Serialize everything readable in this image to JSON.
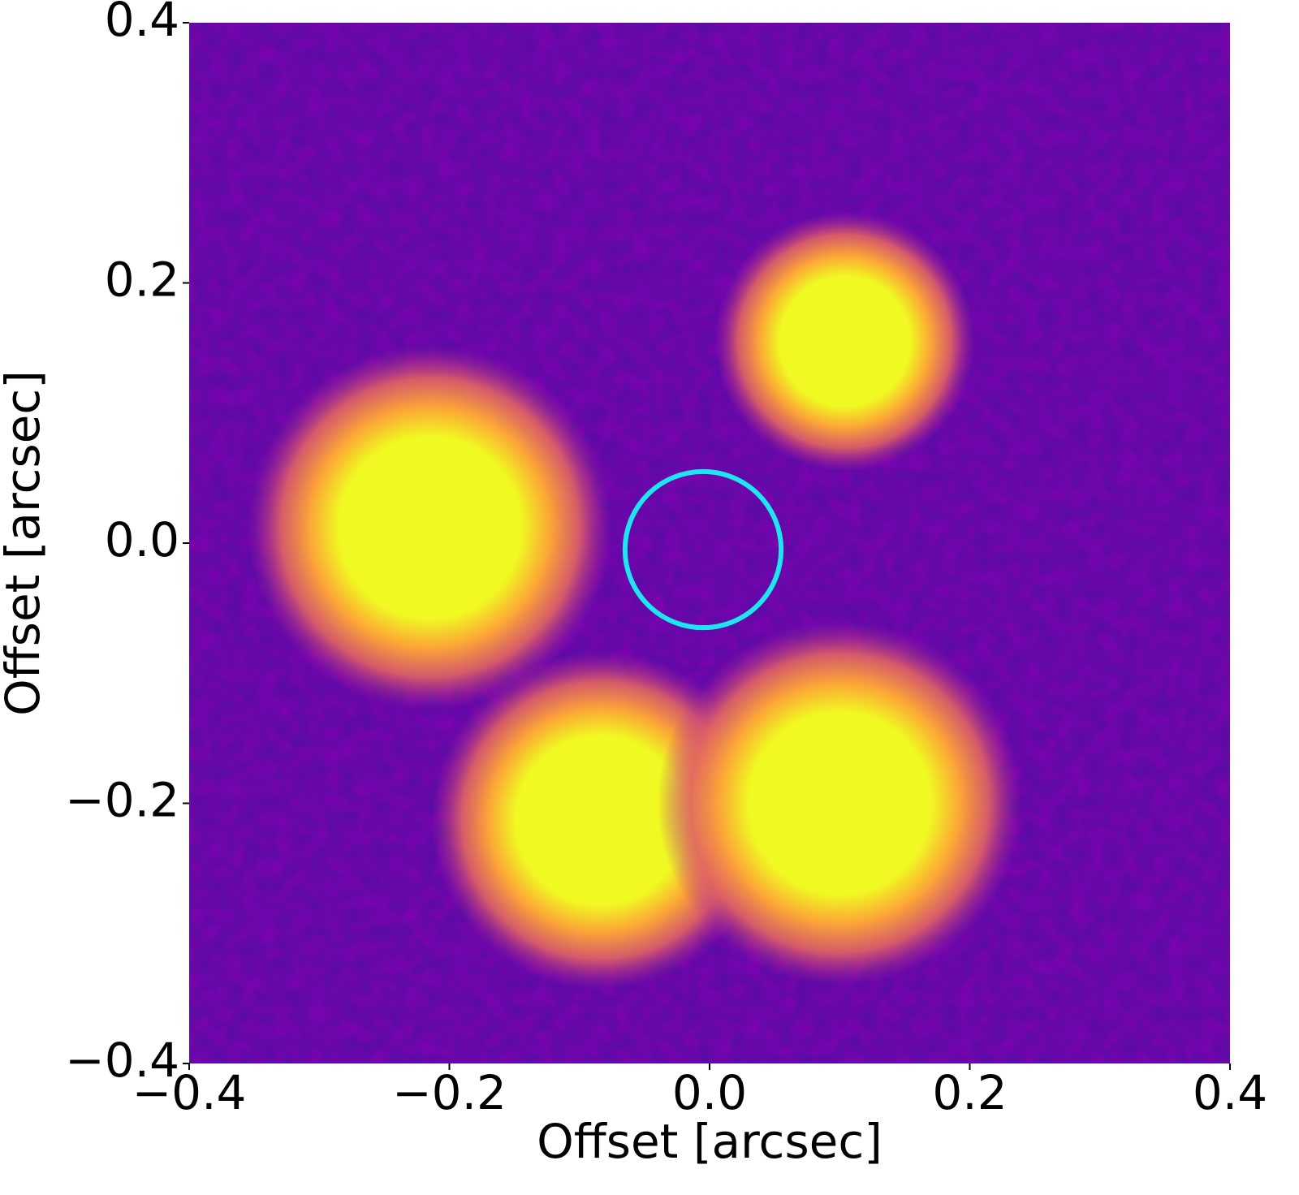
{
  "chart_data": {
    "type": "image",
    "xlabel": "Offset [arcsec]",
    "ylabel": "Offset [arcsec]",
    "xlim": [
      -0.4,
      0.4
    ],
    "ylim": [
      -0.4,
      0.4
    ],
    "xticks": [
      {
        "value": -0.4,
        "label": "−0.4"
      },
      {
        "value": -0.2,
        "label": "−0.2"
      },
      {
        "value": 0.0,
        "label": "0.0"
      },
      0.2,
      0.4
    ],
    "yticks": [
      {
        "value": -0.4,
        "label": "−0.4"
      },
      {
        "value": -0.2,
        "label": "−0.2"
      },
      {
        "value": 0.0,
        "label": "0.0"
      },
      0.2,
      0.4
    ],
    "background_color": "#5e0aa6",
    "color_stops": [
      "#f0f921",
      "#fca636",
      "#e16462",
      "#b12a90"
    ],
    "sources": {
      "x": [
        0.104,
        -0.215,
        -0.084,
        0.1
      ],
      "y": [
        0.155,
        0.012,
        -0.213,
        -0.2
      ],
      "sizes": [
        0.1,
        0.14,
        0.13,
        0.14
      ]
    },
    "aperture": {
      "x": -0.005,
      "y": -0.005,
      "radius": 0.06,
      "color": "#1de6f0"
    }
  }
}
